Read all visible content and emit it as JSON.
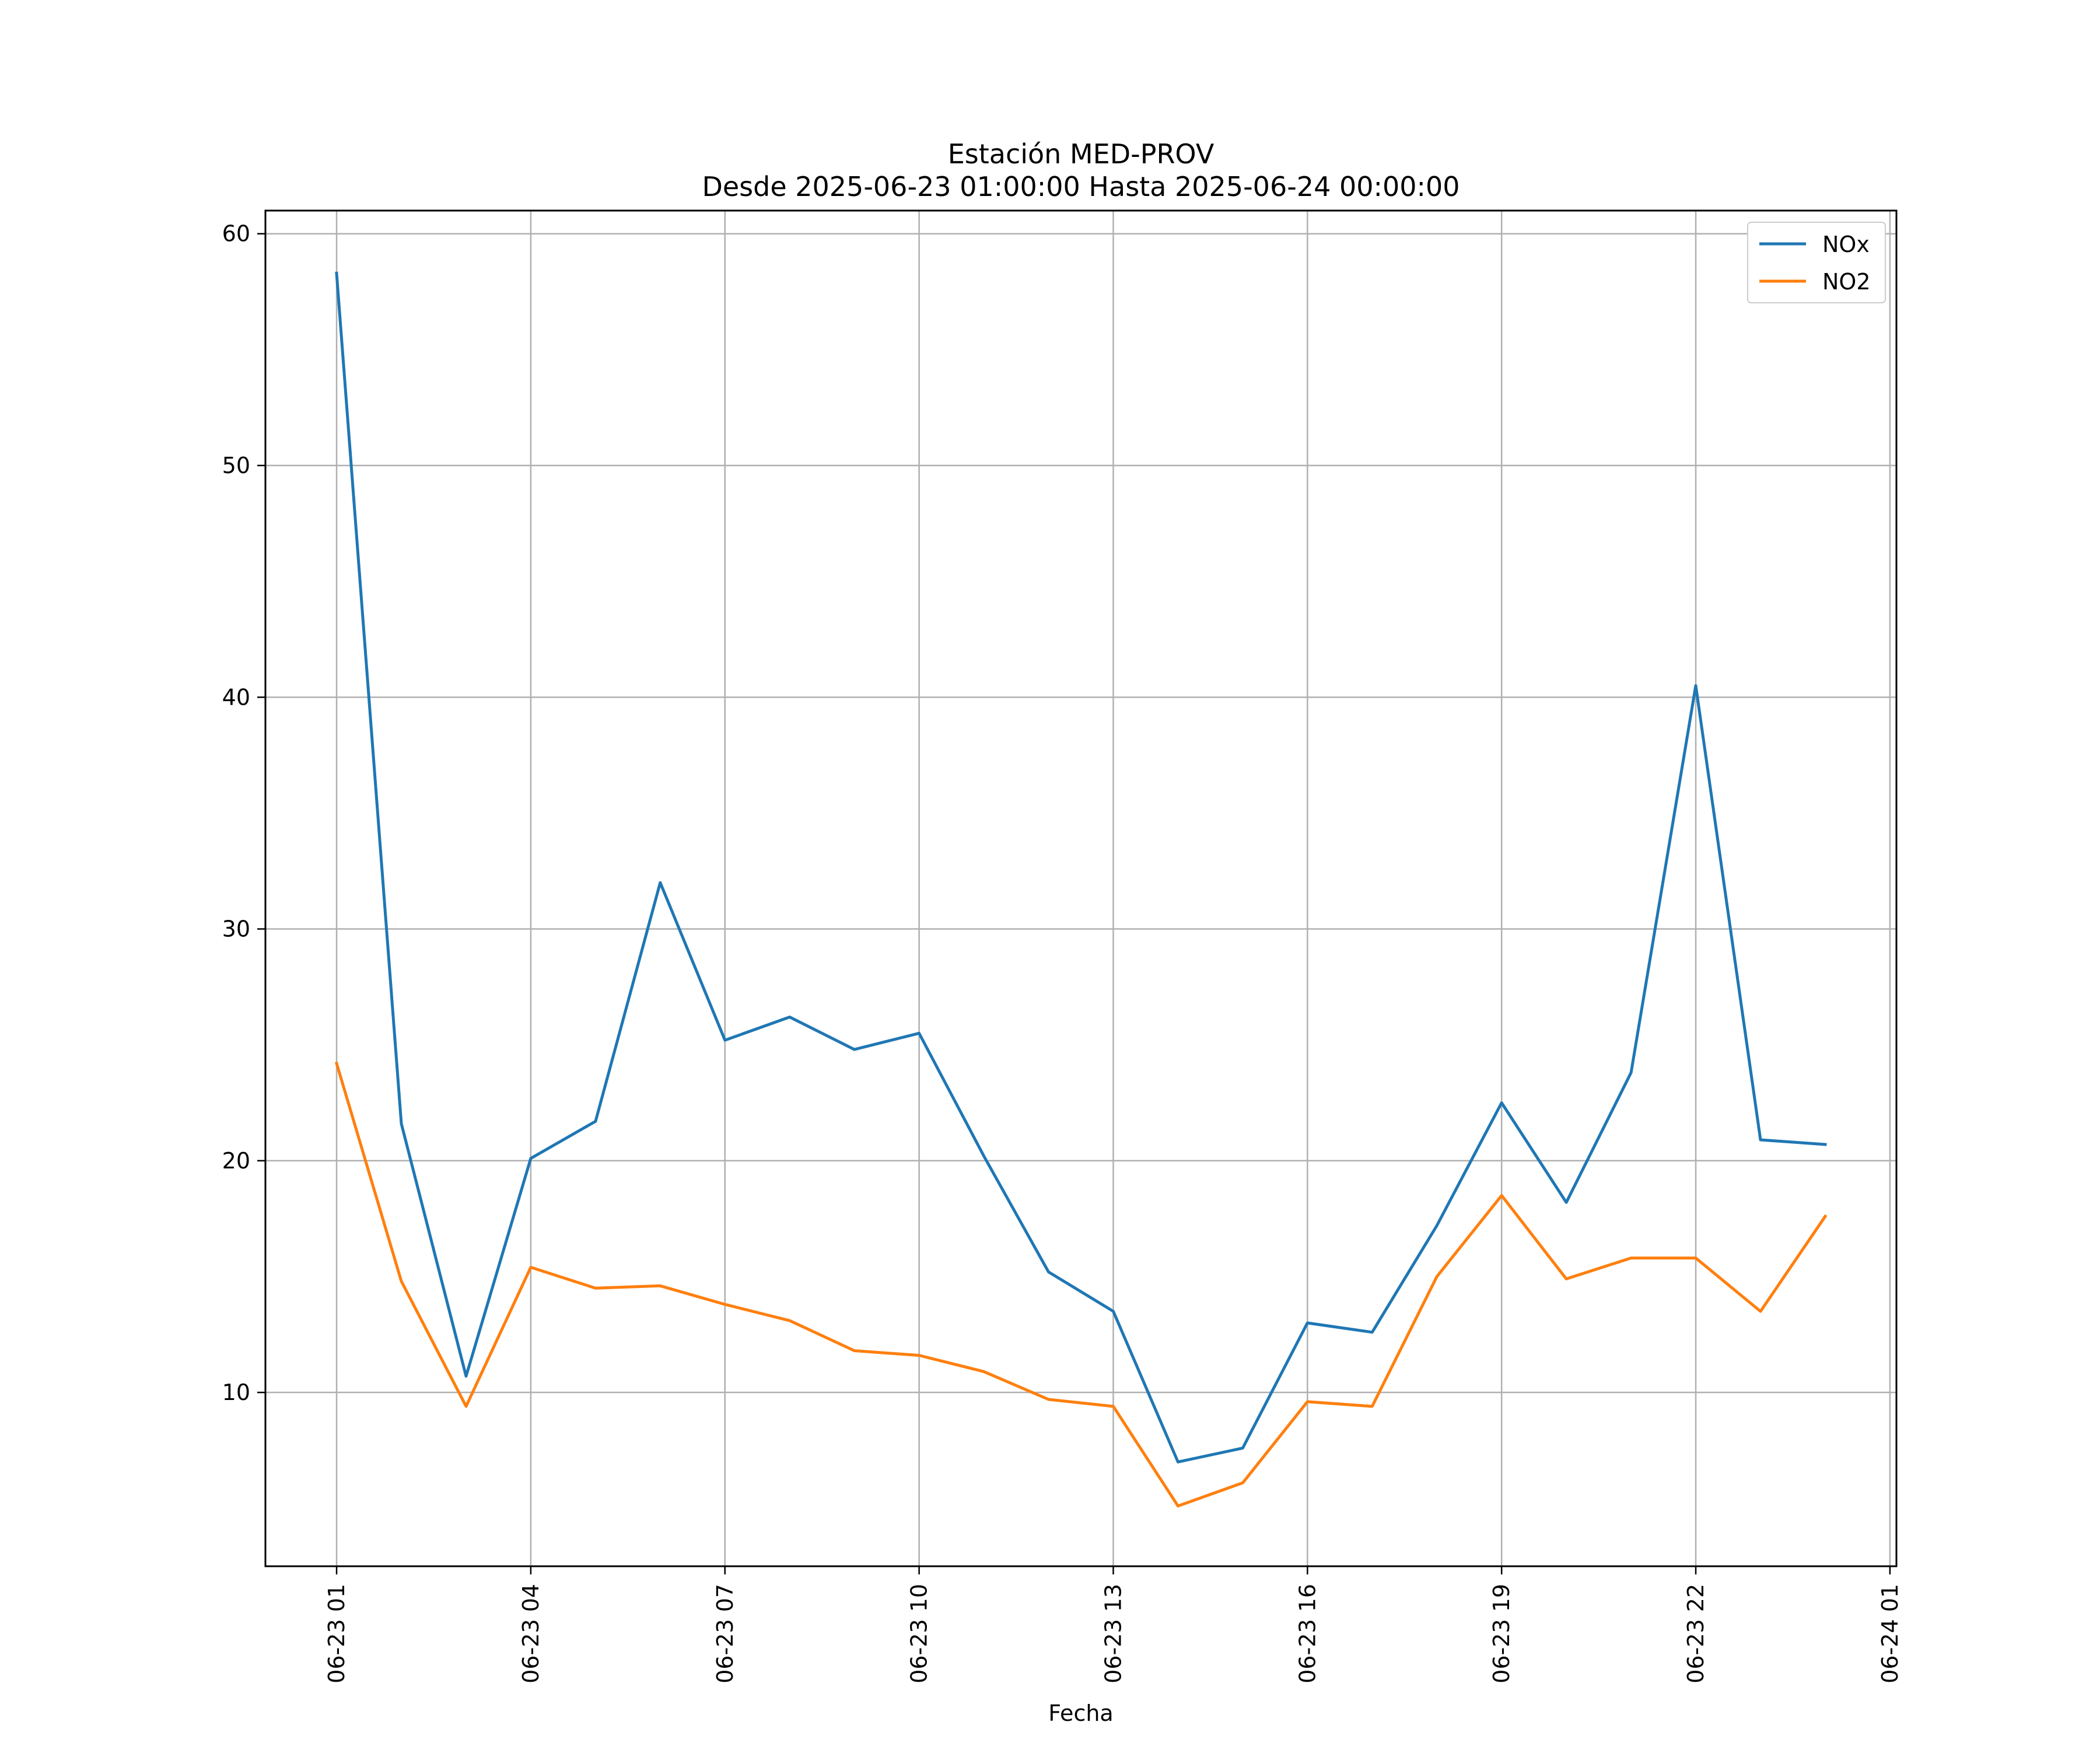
{
  "chart_data": {
    "type": "line",
    "title": [
      "Estación MED-PROV",
      "Desde 2025-06-23 01:00:00 Hasta 2025-06-24 00:00:00"
    ],
    "xlabel": "Fecha",
    "ylabel": "",
    "x": [
      "2025-06-23 01:00",
      "2025-06-23 02:00",
      "2025-06-23 03:00",
      "2025-06-23 04:00",
      "2025-06-23 05:00",
      "2025-06-23 06:00",
      "2025-06-23 07:00",
      "2025-06-23 08:00",
      "2025-06-23 09:00",
      "2025-06-23 10:00",
      "2025-06-23 11:00",
      "2025-06-23 12:00",
      "2025-06-23 13:00",
      "2025-06-23 14:00",
      "2025-06-23 15:00",
      "2025-06-23 16:00",
      "2025-06-23 17:00",
      "2025-06-23 18:00",
      "2025-06-23 19:00",
      "2025-06-23 20:00",
      "2025-06-23 21:00",
      "2025-06-23 22:00",
      "2025-06-23 23:00",
      "2025-06-24 00:00"
    ],
    "series": [
      {
        "name": "NOx",
        "color": "#1f77b4",
        "values": [
          58.3,
          21.6,
          10.7,
          20.1,
          21.7,
          32.0,
          25.2,
          26.2,
          24.8,
          25.5,
          20.2,
          15.2,
          13.5,
          7.0,
          7.6,
          13.0,
          12.6,
          17.2,
          22.5,
          18.2,
          23.8,
          40.5,
          20.9,
          20.7
        ]
      },
      {
        "name": "NO2",
        "color": "#ff7f0e",
        "values": [
          24.2,
          14.8,
          9.4,
          15.4,
          14.5,
          14.6,
          13.8,
          13.1,
          11.8,
          11.6,
          10.9,
          9.7,
          9.4,
          5.1,
          6.1,
          9.6,
          9.4,
          15.0,
          18.5,
          14.9,
          15.8,
          15.8,
          13.5,
          17.6
        ]
      }
    ],
    "xticks": [
      "06-23 01",
      "06-23 04",
      "06-23 07",
      "06-23 10",
      "06-23 13",
      "06-23 16",
      "06-23 19",
      "06-23 22",
      "06-24 01"
    ],
    "yticks": [
      "10",
      "20",
      "30",
      "40",
      "50",
      "60"
    ],
    "ylim": [
      2.5,
      61
    ],
    "xlim": [
      "2025-06-22 23:54",
      "2025-06-24 01:06"
    ],
    "grid": true,
    "legend_position": "top-right"
  }
}
